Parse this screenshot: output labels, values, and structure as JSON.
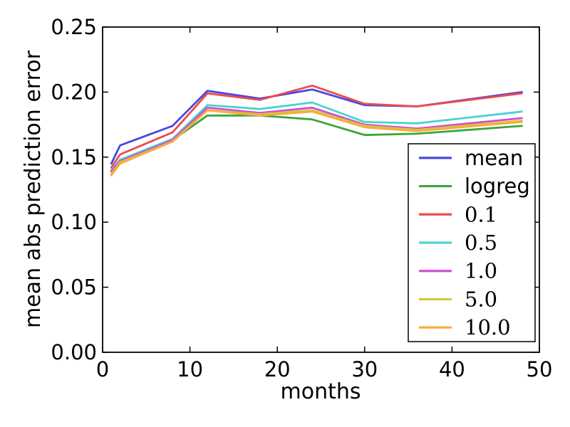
{
  "chart_data": {
    "type": "line",
    "title": "",
    "xlabel": "months",
    "ylabel": "mean abs prediction error",
    "xlim": [
      0,
      50
    ],
    "ylim": [
      0,
      0.25
    ],
    "xticks": [
      0,
      10,
      20,
      30,
      40,
      50
    ],
    "xtick_labels": [
      "0",
      "10",
      "20",
      "30",
      "40",
      "50"
    ],
    "yticks": [
      0.0,
      0.05,
      0.1,
      0.15,
      0.2,
      0.25
    ],
    "ytick_labels": [
      "0.00",
      "0.05",
      "0.10",
      "0.15",
      "0.20",
      "0.25"
    ],
    "grid": false,
    "legend_position": "lower right",
    "x": [
      1,
      2,
      8,
      12,
      18,
      24,
      30,
      36,
      48
    ],
    "series": [
      {
        "name": "mean",
        "color": "#4747e3",
        "values": [
          0.145,
          0.159,
          0.174,
          0.201,
          0.195,
          0.202,
          0.19,
          0.189,
          0.2
        ]
      },
      {
        "name": "logreg",
        "color": "#3da43d",
        "values": [
          0.139,
          0.147,
          0.163,
          0.182,
          0.182,
          0.179,
          0.167,
          0.168,
          0.174
        ]
      },
      {
        "name": "0.1",
        "color": "#ee4b4b",
        "values": [
          0.142,
          0.152,
          0.169,
          0.199,
          0.194,
          0.205,
          0.191,
          0.189,
          0.199
        ]
      },
      {
        "name": "0.5",
        "color": "#4ad2d2",
        "values": [
          0.14,
          0.148,
          0.164,
          0.19,
          0.187,
          0.192,
          0.177,
          0.176,
          0.185
        ]
      },
      {
        "name": "1.0",
        "color": "#d04ed0",
        "values": [
          0.139,
          0.147,
          0.163,
          0.188,
          0.184,
          0.188,
          0.175,
          0.172,
          0.18
        ]
      },
      {
        "name": "5.0",
        "color": "#cbcb3d",
        "values": [
          0.137,
          0.146,
          0.162,
          0.186,
          0.183,
          0.186,
          0.174,
          0.171,
          0.178
        ]
      },
      {
        "name": "10.0",
        "color": "#fbaa3e",
        "values": [
          0.136,
          0.145,
          0.162,
          0.186,
          0.182,
          0.185,
          0.173,
          0.17,
          0.177
        ]
      }
    ],
    "axis_color": "#000000",
    "background_color": "#ffffff"
  }
}
